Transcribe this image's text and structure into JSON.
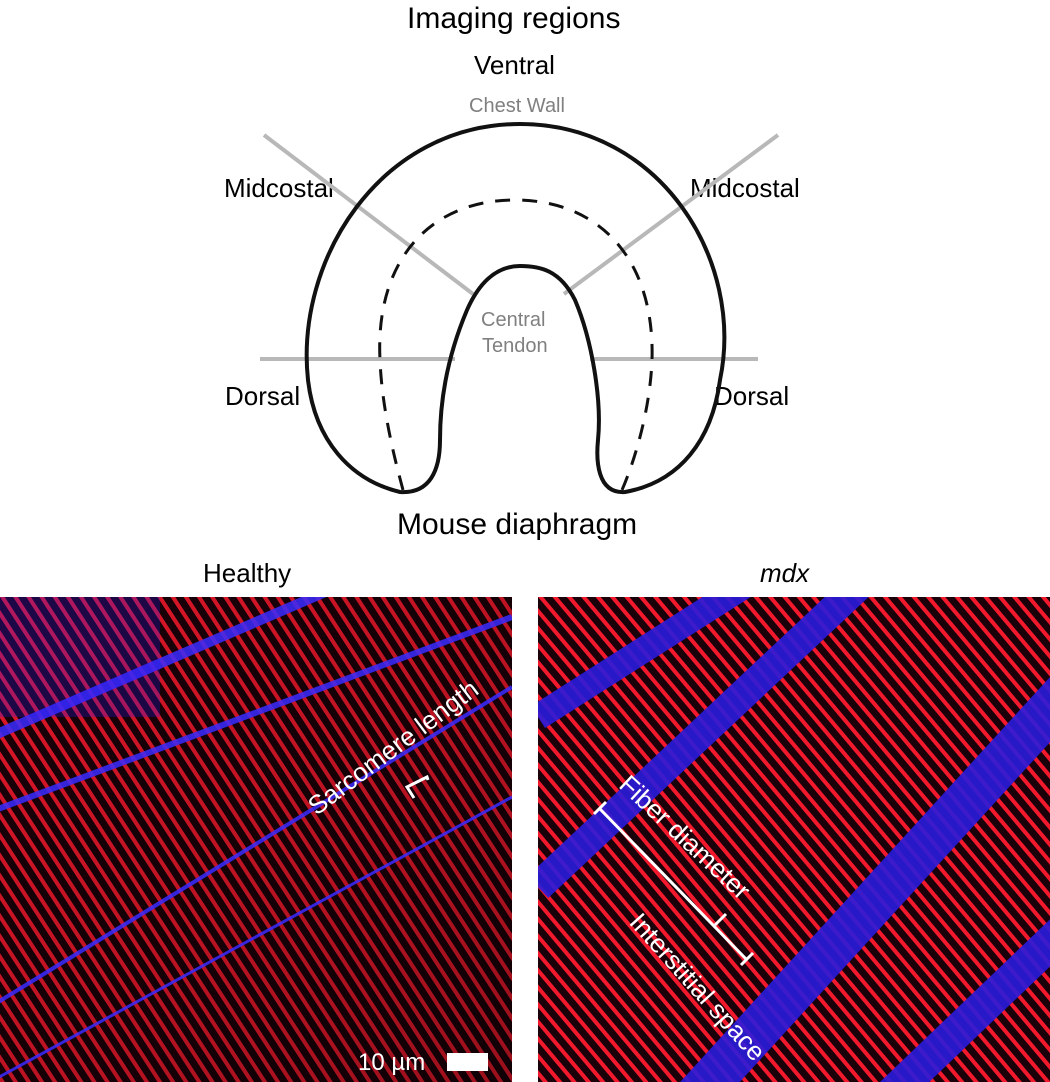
{
  "diagram": {
    "title": "Imaging regions",
    "ventral": "Ventral",
    "chest_wall": "Chest Wall",
    "midcostal_left": "Midcostal",
    "midcostal_right": "Midcostal",
    "dorsal_left": "Dorsal",
    "dorsal_right": "Dorsal",
    "central_tendon_1": "Central",
    "central_tendon_2": "Tendon",
    "caption": "Mouse diaphragm"
  },
  "panels": {
    "healthy": {
      "title": "Healthy",
      "sarcomere_label": "Sarcomere length",
      "scale_bar": "10 µm"
    },
    "mdx": {
      "title": "mdx",
      "fiber_label": "Fiber diameter",
      "interstitial_label": "Interstitial space"
    }
  },
  "colors": {
    "outline": "#111111",
    "region_lines": "#b8b8b8",
    "grey_text": "#808080",
    "sarcomere_red": "#ff1a2e",
    "membrane_blue": "#3a2cff",
    "annotation": "#ffffff"
  }
}
